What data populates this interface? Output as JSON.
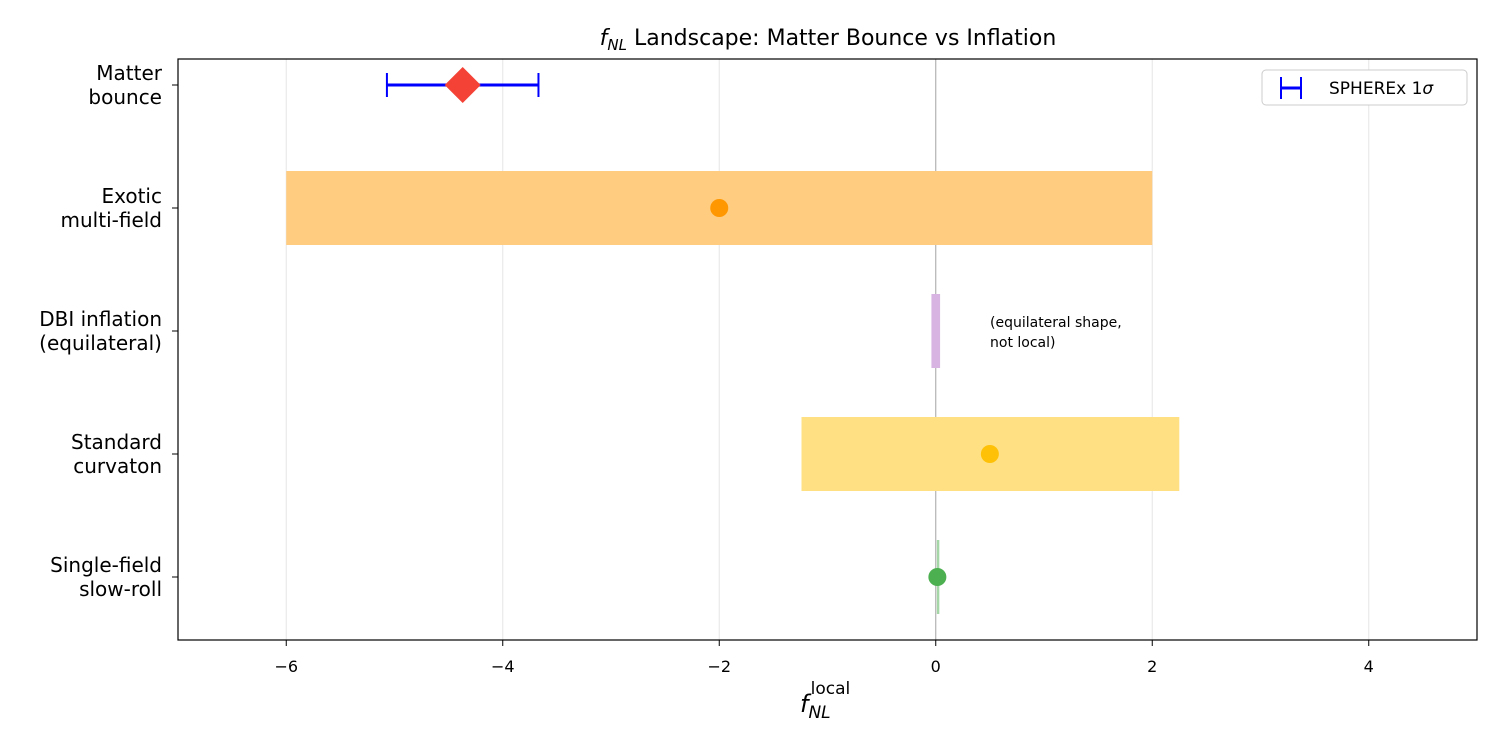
{
  "chart_data": {
    "type": "range",
    "title": [
      "f",
      "NL",
      " Landscape: Matter Bounce vs Inflation"
    ],
    "xlabel": [
      "f",
      "NL",
      "local"
    ],
    "categories": [
      [
        "Matter",
        "bounce"
      ],
      [
        "Exotic",
        "multi-field"
      ],
      [
        "DBI inflation",
        "(equilateral)"
      ],
      [
        "Standard",
        "curvaton"
      ],
      [
        "Single-field",
        "slow-roll"
      ]
    ],
    "ranges": [
      null,
      [
        -6,
        2
      ],
      [
        -0.04,
        0.04
      ],
      [
        -1.24,
        2.25
      ],
      [
        0.01,
        0.02
      ]
    ],
    "range_colors": [
      null,
      "#ffcc80",
      "#d8b4e2",
      "#ffe082",
      "#a5d6a7"
    ],
    "points": [
      -4.37,
      -2,
      null,
      0.5,
      0.015
    ],
    "point_colors": [
      "#f44336",
      "#ff9800",
      null,
      "#ffc107",
      "#4caf50"
    ],
    "point_markers": [
      "diamond",
      "circle",
      null,
      "circle",
      "circle"
    ],
    "errors": [
      0.7,
      null,
      null,
      null,
      null
    ],
    "error_color": "#0000ff",
    "legend": {
      "label": [
        "SPHEREx 1",
        "σ"
      ],
      "loc": "upper right"
    },
    "annotation": [
      "(equilateral shape,",
      "not local)"
    ],
    "xlim": [
      -7,
      5
    ],
    "xticks": [
      {
        "value": -6,
        "label": "−6"
      },
      {
        "value": -4,
        "label": "−4"
      },
      {
        "value": -2,
        "label": "−2"
      },
      0,
      2,
      4
    ],
    "vline": 0,
    "grid": true
  }
}
